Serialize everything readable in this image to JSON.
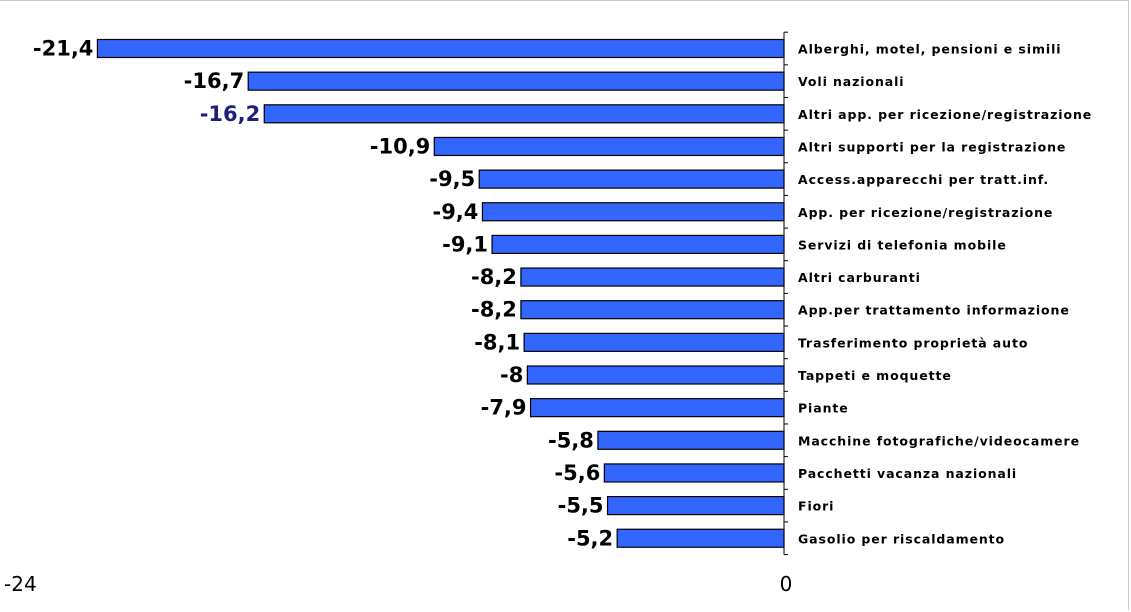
{
  "chart_data": {
    "type": "bar",
    "orientation": "horizontal",
    "title": "",
    "xlabel": "",
    "ylabel": "",
    "xlim": [
      -24,
      0
    ],
    "grid": false,
    "legend": "none",
    "bar_color": "#3366ff",
    "highlight_label_color": "#1f1f7a",
    "categories": [
      "Alberghi, motel, pensioni e simili",
      "Voli nazionali",
      "Altri app. per ricezione/registrazione",
      "Altri supporti per la registrazione",
      "Access.apparecchi per tratt.inf.",
      "App. per ricezione/registrazione",
      "Servizi di telefonia mobile",
      "Altri carburanti",
      "App.per trattamento informazione",
      "Trasferimento proprietà auto",
      "Tappeti e moquette",
      "Piante",
      "Macchine fotografiche/videocamere",
      "Pacchetti vacanza nazionali",
      "Fiori",
      "Gasolio per riscaldamento"
    ],
    "values": [
      -21.4,
      -16.7,
      -16.2,
      -10.9,
      -9.5,
      -9.4,
      -9.1,
      -8.2,
      -8.2,
      -8.1,
      -8,
      -7.9,
      -5.8,
      -5.6,
      -5.5,
      -5.2
    ],
    "value_labels": [
      "-21,4",
      "-16,7",
      "-16,2",
      "-10,9",
      "-9,5",
      "-9,4",
      "-9,1",
      "-8,2",
      "-8,2",
      "-8,1",
      "-8",
      "-7,9",
      "-5,8",
      "-5,6",
      "-5,5",
      "-5,2"
    ],
    "highlighted_index": 2,
    "x_tick_labels": [
      "-24",
      "0"
    ]
  }
}
